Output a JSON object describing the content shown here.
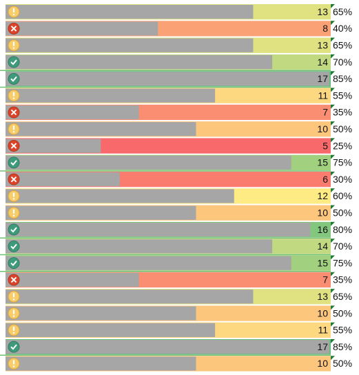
{
  "table": {
    "rows": [
      {
        "count": 13,
        "percent": "65%"
      },
      {
        "count": 8,
        "percent": "40%"
      },
      {
        "count": 13,
        "percent": "65%"
      },
      {
        "count": 14,
        "percent": "70%"
      },
      {
        "count": 17,
        "percent": "85%"
      },
      {
        "count": 11,
        "percent": "55%"
      },
      {
        "count": 7,
        "percent": "35%"
      },
      {
        "count": 10,
        "percent": "50%"
      },
      {
        "count": 5,
        "percent": "25%"
      },
      {
        "count": 15,
        "percent": "75%"
      },
      {
        "count": 6,
        "percent": "30%"
      },
      {
        "count": 12,
        "percent": "60%"
      },
      {
        "count": 10,
        "percent": "50%"
      },
      {
        "count": 16,
        "percent": "80%"
      },
      {
        "count": 14,
        "percent": "70%"
      },
      {
        "count": 15,
        "percent": "75%"
      },
      {
        "count": 7,
        "percent": "35%"
      },
      {
        "count": 13,
        "percent": "65%"
      },
      {
        "count": 10,
        "percent": "50%"
      },
      {
        "count": 11,
        "percent": "55%"
      },
      {
        "count": 17,
        "percent": "85%"
      },
      {
        "count": 10,
        "percent": "50%"
      }
    ]
  }
}
